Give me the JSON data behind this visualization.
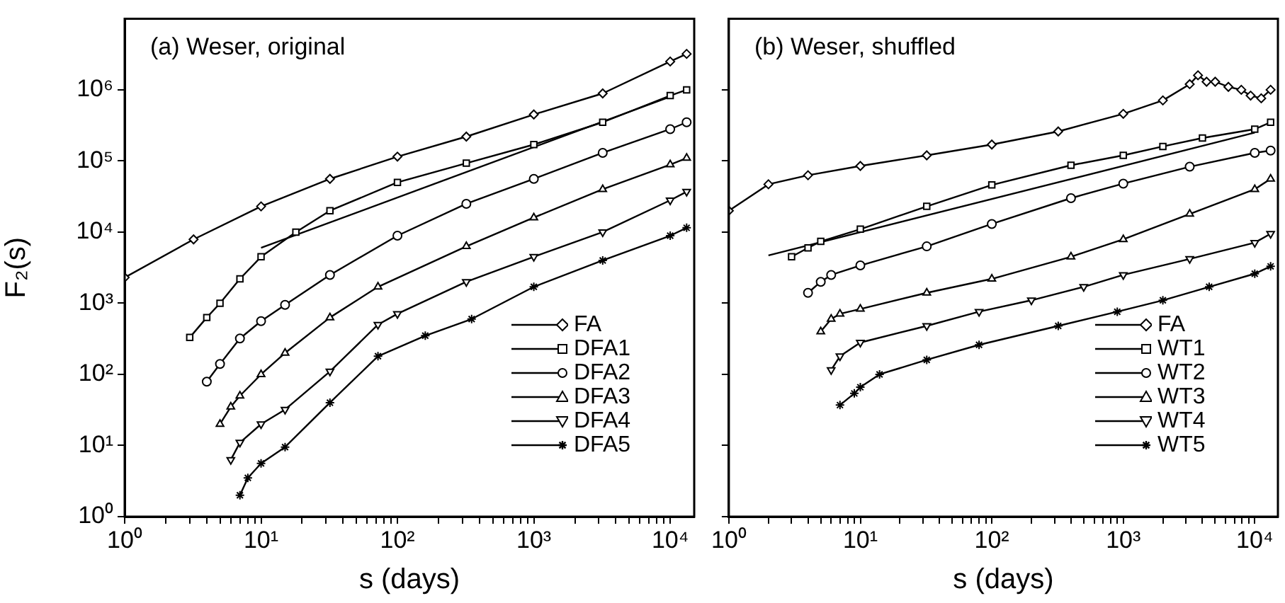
{
  "chart_data": [
    {
      "type": "line",
      "title": "(a) Weser, original",
      "xlabel": "s (days)",
      "ylabel": "F₂(s)",
      "log": "xy",
      "grid": false,
      "legend": "bottom right",
      "xlim": [
        1,
        15000
      ],
      "ylim": [
        1,
        10000000
      ],
      "xticks": [
        {
          "value": 1,
          "label": "10⁰"
        },
        {
          "value": 2,
          "label": null
        },
        {
          "value": 3,
          "label": null
        },
        {
          "value": 4,
          "label": null
        },
        {
          "value": 5,
          "label": null
        },
        {
          "value": 6,
          "label": null
        },
        {
          "value": 7,
          "label": null
        },
        {
          "value": 8,
          "label": null
        },
        {
          "value": 9,
          "label": null
        },
        {
          "value": 10,
          "label": "10¹"
        },
        {
          "value": 20,
          "label": null
        },
        {
          "value": 30,
          "label": null
        },
        {
          "value": 40,
          "label": null
        },
        {
          "value": 50,
          "label": null
        },
        {
          "value": 60,
          "label": null
        },
        {
          "value": 70,
          "label": null
        },
        {
          "value": 80,
          "label": null
        },
        {
          "value": 90,
          "label": null
        },
        {
          "value": 100,
          "label": "10²"
        },
        {
          "value": 200,
          "label": null
        },
        {
          "value": 300,
          "label": null
        },
        {
          "value": 400,
          "label": null
        },
        {
          "value": 500,
          "label": null
        },
        {
          "value": 600,
          "label": null
        },
        {
          "value": 700,
          "label": null
        },
        {
          "value": 800,
          "label": null
        },
        {
          "value": 900,
          "label": null
        },
        {
          "value": 1000,
          "label": "10³"
        },
        {
          "value": 2000,
          "label": null
        },
        {
          "value": 3000,
          "label": null
        },
        {
          "value": 4000,
          "label": null
        },
        {
          "value": 5000,
          "label": null
        },
        {
          "value": 6000,
          "label": null
        },
        {
          "value": 7000,
          "label": null
        },
        {
          "value": 8000,
          "label": null
        },
        {
          "value": 9000,
          "label": null
        },
        {
          "value": 10000,
          "label": "10⁴"
        }
      ],
      "yticks": [
        {
          "value": 1,
          "label": "10⁰"
        },
        {
          "value": 10,
          "label": "10¹"
        },
        {
          "value": 100,
          "label": "10²"
        },
        {
          "value": 1000,
          "label": "10³"
        },
        {
          "value": 10000,
          "label": "10⁴"
        },
        {
          "value": 100000,
          "label": "10⁵"
        },
        {
          "value": 1000000,
          "label": "10⁶"
        }
      ],
      "series": [
        {
          "name": "FA",
          "color": "#000000",
          "marker": "diamond",
          "x": [
            1,
            3.2,
            10,
            32,
            100,
            320,
            1000,
            3200,
            10000,
            13200
          ],
          "values": [
            2300,
            7900,
            23000,
            56000,
            115000,
            220000,
            450000,
            890000,
            2500000,
            3200000
          ]
        },
        {
          "name": "DFA1",
          "color": "#000000",
          "marker": "square",
          "x": [
            3,
            4,
            5,
            7,
            10,
            18,
            32,
            100,
            320,
            1000,
            3200,
            10000,
            13200
          ],
          "values": [
            330,
            630,
            1000,
            2200,
            4500,
            10000,
            20000,
            50000,
            93000,
            170000,
            350000,
            830000,
            1000000
          ]
        },
        {
          "name": "DFA2",
          "color": "#000000",
          "marker": "circle",
          "x": [
            4,
            5,
            7,
            10,
            15,
            32,
            100,
            320,
            1000,
            3200,
            10000,
            13200
          ],
          "values": [
            79,
            140,
            320,
            560,
            950,
            2500,
            8900,
            25000,
            56000,
            130000,
            280000,
            350000
          ]
        },
        {
          "name": "DFA3",
          "color": "#000000",
          "marker": "triangle",
          "x": [
            5,
            6,
            7,
            10,
            15,
            32,
            72,
            320,
            1000,
            3200,
            10000,
            13200
          ],
          "values": [
            20,
            35,
            50,
            100,
            200,
            630,
            1700,
            6300,
            16000,
            40000,
            89000,
            110000
          ]
        },
        {
          "name": "DFA4",
          "color": "#000000",
          "marker": "triangle-down",
          "x": [
            6,
            7,
            10,
            15,
            32,
            72,
            100,
            320,
            1000,
            3200,
            10000,
            13200
          ],
          "values": [
            6.3,
            11,
            20,
            32,
            110,
            500,
            710,
            2000,
            4500,
            10000,
            28000,
            37000
          ]
        },
        {
          "name": "DFA5",
          "color": "#000000",
          "marker": "cross",
          "x": [
            7,
            8,
            10,
            15,
            32,
            72,
            160,
            350,
            1000,
            3200,
            10000,
            13200
          ],
          "values": [
            2,
            3.5,
            5.6,
            9.5,
            40,
            180,
            350,
            600,
            1700,
            4000,
            8900,
            11500
          ]
        },
        {
          "color": "#000000",
          "marker": "none",
          "x": [
            10,
            10000
          ],
          "values": [
            6000,
            800000
          ]
        }
      ]
    },
    {
      "type": "line",
      "title": "(b) Weser, shuffled",
      "xlabel": "s (days)",
      "log": "xy",
      "grid": false,
      "legend": "bottom right",
      "tick_labels": "x",
      "xlim": [
        1,
        15000
      ],
      "ylim": [
        1,
        10000000
      ],
      "xticks": [
        {
          "value": 1,
          "label": "10⁰"
        },
        {
          "value": 2,
          "label": null
        },
        {
          "value": 3,
          "label": null
        },
        {
          "value": 4,
          "label": null
        },
        {
          "value": 5,
          "label": null
        },
        {
          "value": 6,
          "label": null
        },
        {
          "value": 7,
          "label": null
        },
        {
          "value": 8,
          "label": null
        },
        {
          "value": 9,
          "label": null
        },
        {
          "value": 10,
          "label": "10¹"
        },
        {
          "value": 20,
          "label": null
        },
        {
          "value": 30,
          "label": null
        },
        {
          "value": 40,
          "label": null
        },
        {
          "value": 50,
          "label": null
        },
        {
          "value": 60,
          "label": null
        },
        {
          "value": 70,
          "label": null
        },
        {
          "value": 80,
          "label": null
        },
        {
          "value": 90,
          "label": null
        },
        {
          "value": 100,
          "label": "10²"
        },
        {
          "value": 200,
          "label": null
        },
        {
          "value": 300,
          "label": null
        },
        {
          "value": 400,
          "label": null
        },
        {
          "value": 500,
          "label": null
        },
        {
          "value": 600,
          "label": null
        },
        {
          "value": 700,
          "label": null
        },
        {
          "value": 800,
          "label": null
        },
        {
          "value": 900,
          "label": null
        },
        {
          "value": 1000,
          "label": "10³"
        },
        {
          "value": 2000,
          "label": null
        },
        {
          "value": 3000,
          "label": null
        },
        {
          "value": 4000,
          "label": null
        },
        {
          "value": 5000,
          "label": null
        },
        {
          "value": 6000,
          "label": null
        },
        {
          "value": 7000,
          "label": null
        },
        {
          "value": 8000,
          "label": null
        },
        {
          "value": 9000,
          "label": null
        },
        {
          "value": 10000,
          "label": "10⁴"
        }
      ],
      "yticks": [
        {
          "value": 1,
          "label": null
        },
        {
          "value": 10,
          "label": null
        },
        {
          "value": 100,
          "label": null
        },
        {
          "value": 1000,
          "label": null
        },
        {
          "value": 10000,
          "label": null
        },
        {
          "value": 100000,
          "label": null
        },
        {
          "value": 1000000,
          "label": null
        }
      ],
      "series": [
        {
          "name": "FA",
          "color": "#000000",
          "marker": "diamond",
          "x": [
            1,
            2,
            4,
            10,
            32,
            100,
            320,
            1000,
            2000,
            3200,
            3700,
            4300,
            5000,
            6300,
            7900,
            9300,
            11200,
            13200
          ],
          "values": [
            20000,
            47000,
            63000,
            85000,
            120000,
            170000,
            260000,
            460000,
            710000,
            1200000,
            1600000,
            1300000,
            1300000,
            1100000,
            1000000,
            830000,
            760000,
            1000000
          ]
        },
        {
          "name": "WT1",
          "color": "#000000",
          "marker": "square",
          "x": [
            3,
            4,
            5,
            10,
            32,
            100,
            400,
            1000,
            2000,
            4000,
            10000,
            13200
          ],
          "values": [
            4500,
            6000,
            7400,
            11000,
            23000,
            46000,
            87000,
            120000,
            160000,
            210000,
            280000,
            350000
          ]
        },
        {
          "name": "WT2",
          "color": "#000000",
          "marker": "circle",
          "x": [
            4,
            5,
            6,
            10,
            32,
            100,
            400,
            1000,
            3200,
            10000,
            13200
          ],
          "values": [
            1400,
            2000,
            2500,
            3400,
            6300,
            13000,
            30000,
            48000,
            83000,
            130000,
            140000
          ]
        },
        {
          "name": "WT3",
          "color": "#000000",
          "marker": "triangle",
          "x": [
            5,
            6,
            7,
            10,
            32,
            100,
            400,
            1000,
            3200,
            10000,
            13200
          ],
          "values": [
            400,
            600,
            710,
            830,
            1400,
            2200,
            4500,
            7900,
            18000,
            40000,
            56000
          ]
        },
        {
          "name": "WT4",
          "color": "#000000",
          "marker": "triangle-down",
          "x": [
            6,
            7,
            10,
            32,
            80,
            200,
            500,
            1000,
            3200,
            10000,
            13200
          ],
          "values": [
            115,
            180,
            280,
            480,
            760,
            1100,
            1700,
            2500,
            4200,
            7100,
            9500
          ]
        },
        {
          "name": "WT5",
          "color": "#000000",
          "marker": "cross",
          "x": [
            7,
            9,
            10,
            14,
            32,
            80,
            320,
            900,
            2000,
            4500,
            10000,
            13200
          ],
          "values": [
            37,
            54,
            66,
            100,
            160,
            260,
            480,
            760,
            1100,
            1700,
            2600,
            3300
          ]
        },
        {
          "color": "#000000",
          "marker": "none",
          "x": [
            2,
            10000
          ],
          "values": [
            4700,
            250000
          ]
        }
      ]
    }
  ]
}
